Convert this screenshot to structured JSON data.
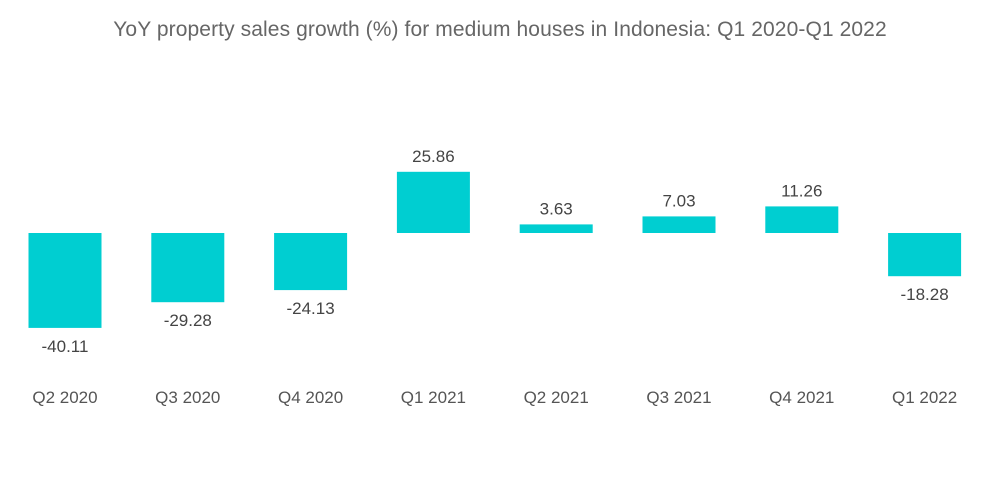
{
  "chart_data": {
    "type": "bar",
    "title": "YoY property sales growth (%) for medium houses in Indonesia: Q1 2020-Q1 2022",
    "xlabel": "",
    "ylabel": "",
    "categories": [
      "Q2 2020",
      "Q3 2020",
      "Q4 2020",
      "Q1 2021",
      "Q2 2021",
      "Q3 2021",
      "Q4 2021",
      "Q1 2022"
    ],
    "values": [
      -40.11,
      -29.28,
      -24.13,
      25.86,
      3.63,
      7.03,
      11.26,
      -18.28
    ],
    "value_labels": [
      "-40.11",
      "-29.28",
      "-24.13",
      "25.86",
      "3.63",
      "7.03",
      "11.26",
      "-18.28"
    ],
    "ylim": [
      -40.11,
      25.86
    ],
    "grid": false,
    "legend": "none",
    "bar_color": "#00CED1"
  }
}
